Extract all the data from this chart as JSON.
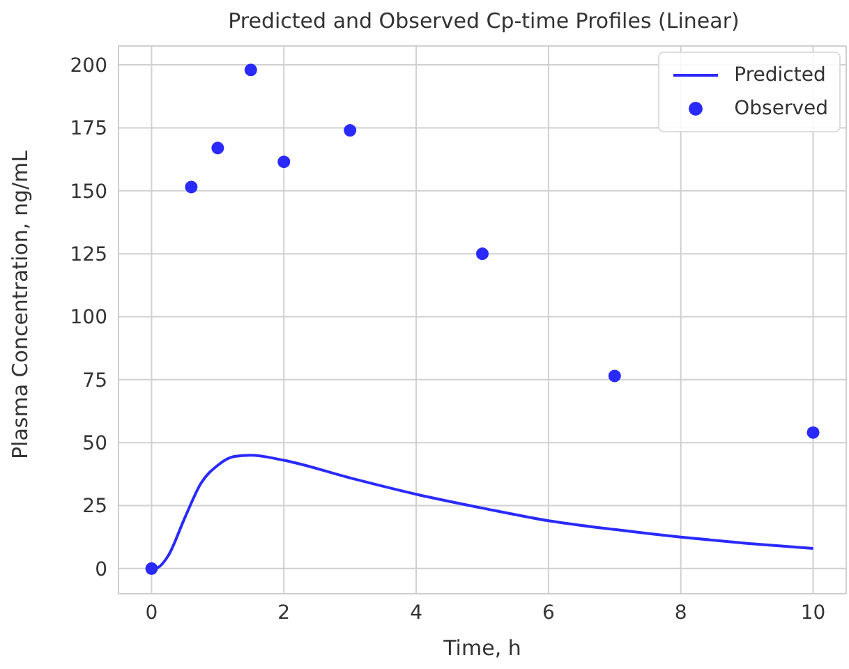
{
  "chart_data": {
    "type": "line",
    "title": "Predicted and Observed Cp-time Profiles (Linear)",
    "xlabel": "Time, h",
    "ylabel": "Plasma Concentration, ng/mL",
    "xlim": [
      -0.5,
      10.5
    ],
    "xticks": [
      0,
      2,
      4,
      6,
      8,
      10
    ],
    "ylim": [
      -10,
      207.5
    ],
    "yticks": [
      0,
      25,
      50,
      75,
      100,
      125,
      150,
      175,
      200
    ],
    "grid": true,
    "legend": "top right",
    "series": [
      {
        "name": "Predicted",
        "color": "#2a2aff",
        "marker": "none",
        "line_style": "solid",
        "x": [
          0,
          0.1,
          0.25,
          0.5,
          0.75,
          1,
          1.25,
          1.5,
          2,
          3,
          4,
          5,
          6,
          7,
          8,
          9,
          10
        ],
        "values": [
          0,
          0.5,
          5,
          20,
          34,
          41,
          44.5,
          45,
          43,
          36,
          29.5,
          24,
          19,
          15.5,
          12.5,
          10,
          8
        ]
      },
      {
        "name": "Observed",
        "type": "scatter",
        "color": "#2a2aff",
        "marker": "circle",
        "x": [
          0,
          0.6,
          1,
          1.5,
          2,
          3,
          5,
          7,
          10
        ],
        "values": [
          0,
          151.5,
          167,
          198,
          161.5,
          174,
          125,
          76.5,
          54
        ]
      }
    ]
  }
}
